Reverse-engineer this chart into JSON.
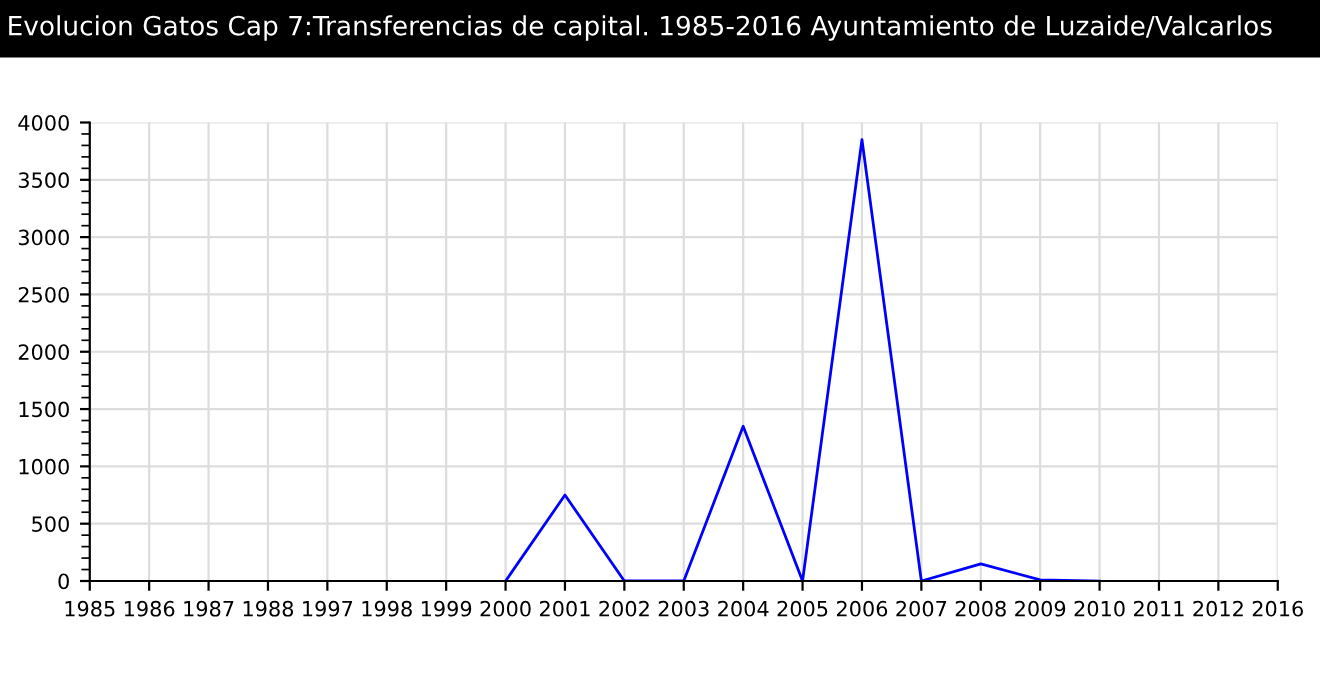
{
  "chart_data": {
    "type": "line",
    "title": "Evolucion Gatos Cap 7:Transferencias de capital. 1985-2016 Ayuntamiento de Luzaide/Valcarlos",
    "categories": [
      "1985",
      "1986",
      "1987",
      "1988",
      "1997",
      "1998",
      "1999",
      "2000",
      "2001",
      "2002",
      "2003",
      "2004",
      "2005",
      "2006",
      "2007",
      "2008",
      "2009",
      "2010",
      "2011",
      "2012",
      "2016"
    ],
    "series": [
      {
        "color": "#0000ff",
        "values": [
          null,
          null,
          null,
          null,
          null,
          null,
          null,
          0,
          750,
          0,
          0,
          1350,
          0,
          3850,
          0,
          150,
          10,
          0,
          null,
          null,
          null
        ]
      }
    ],
    "ylim": [
      0,
      4000
    ],
    "yticks": [
      0,
      500,
      1000,
      1500,
      2000,
      2500,
      3000,
      3500,
      4000
    ],
    "grid": true,
    "legend": false,
    "marker": "none",
    "line_style": "solid"
  }
}
